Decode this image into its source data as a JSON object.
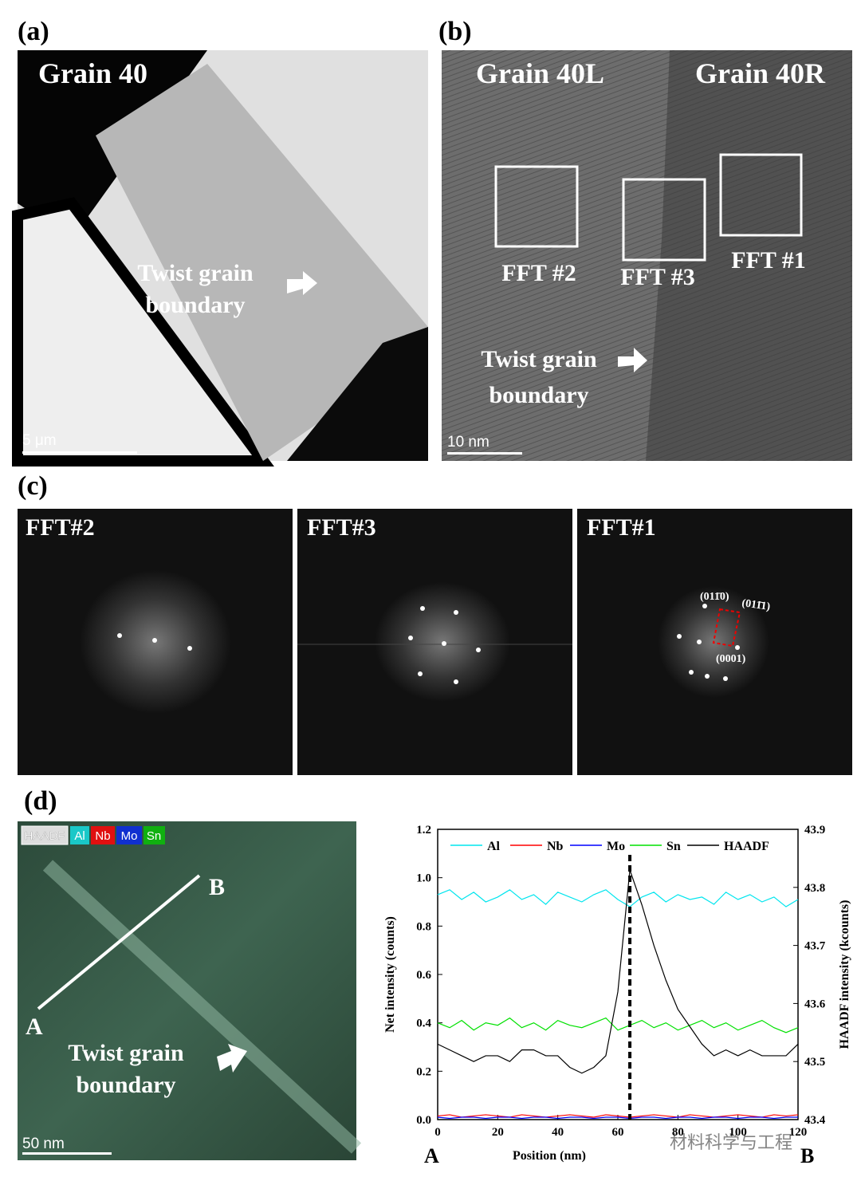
{
  "panels": {
    "a": {
      "label": "(a)",
      "title": "Grain 40",
      "note": [
        "Twist grain",
        "boundary"
      ],
      "scale": "5 μm"
    },
    "b": {
      "label": "(b)",
      "left": "Grain 40L",
      "right": "Grain 40R",
      "boxes": [
        "FFT #2",
        "FFT #3",
        "FFT #1"
      ],
      "note": [
        "Twist grain",
        "boundary"
      ],
      "scale": "10 nm"
    },
    "c": {
      "label": "(c)",
      "titles": [
        "FFT#2",
        "FFT#3",
        "FFT#1"
      ],
      "indices": [
        "(011̄0)",
        "(011̄1)",
        "(0001)"
      ]
    },
    "d": {
      "label": "(d)",
      "tags": [
        "HAADF",
        "Al",
        "Nb",
        "Mo",
        "Sn"
      ],
      "ends": [
        "B",
        "A"
      ],
      "note": [
        "Twist grain",
        "boundary"
      ],
      "scale": "50 nm",
      "axis_ends": [
        "A",
        "B"
      ],
      "watermark": "材料科学与工程"
    }
  },
  "chart_data": {
    "type": "line",
    "xlabel": "Position (nm)",
    "ylabel": "Net intensity (counts)",
    "y2label": "HAADF intensity (kcounts)",
    "x": [
      0,
      4,
      8,
      12,
      16,
      20,
      24,
      28,
      32,
      36,
      40,
      44,
      48,
      52,
      56,
      60,
      64,
      68,
      72,
      76,
      80,
      84,
      88,
      92,
      96,
      100,
      104,
      108,
      112,
      116,
      120
    ],
    "xlim": [
      0,
      120
    ],
    "xticks": [
      0,
      20,
      40,
      60,
      80,
      100,
      120
    ],
    "ylim": [
      0,
      1.2
    ],
    "yticks": [
      {
        "value": 0,
        "label": "0.0"
      },
      0.2,
      0.4,
      0.6,
      0.8,
      {
        "value": 1,
        "label": "1.0"
      },
      1.2
    ],
    "y2lim": [
      43.4,
      43.9
    ],
    "y2ticks": [
      43.4,
      43.5,
      43.6,
      43.7,
      43.8,
      43.9
    ],
    "marker_x": 64,
    "series": [
      {
        "name": "Al",
        "color": "#00e5ee",
        "values": [
          0.93,
          0.95,
          0.91,
          0.94,
          0.9,
          0.92,
          0.95,
          0.91,
          0.93,
          0.89,
          0.94,
          0.92,
          0.9,
          0.93,
          0.95,
          0.91,
          0.88,
          0.92,
          0.94,
          0.9,
          0.93,
          0.91,
          0.92,
          0.89,
          0.94,
          0.91,
          0.93,
          0.9,
          0.92,
          0.88,
          0.91
        ]
      },
      {
        "name": "Nb",
        "color": "#ff0000",
        "values": [
          0.015,
          0.02,
          0.01,
          0.015,
          0.02,
          0.015,
          0.01,
          0.02,
          0.015,
          0.01,
          0.015,
          0.02,
          0.015,
          0.01,
          0.02,
          0.015,
          0.01,
          0.015,
          0.02,
          0.015,
          0.01,
          0.02,
          0.015,
          0.01,
          0.015,
          0.02,
          0.015,
          0.01,
          0.02,
          0.015,
          0.02
        ]
      },
      {
        "name": "Mo",
        "color": "#0000ff",
        "values": [
          0.01,
          0.005,
          0.01,
          0.01,
          0.005,
          0.01,
          0.01,
          0.005,
          0.01,
          0.01,
          0.005,
          0.01,
          0.01,
          0.005,
          0.01,
          0.01,
          0.005,
          0.01,
          0.01,
          0.005,
          0.01,
          0.01,
          0.005,
          0.01,
          0.01,
          0.005,
          0.01,
          0.01,
          0.005,
          0.01,
          0.01
        ]
      },
      {
        "name": "Sn",
        "color": "#00e000",
        "values": [
          0.4,
          0.38,
          0.41,
          0.37,
          0.4,
          0.39,
          0.42,
          0.38,
          0.4,
          0.37,
          0.41,
          0.39,
          0.38,
          0.4,
          0.42,
          0.37,
          0.39,
          0.41,
          0.38,
          0.4,
          0.37,
          0.39,
          0.41,
          0.38,
          0.4,
          0.37,
          0.39,
          0.41,
          0.38,
          0.36,
          0.38
        ]
      },
      {
        "name": "HAADF",
        "color": "#000000",
        "axis": "y2",
        "values": [
          43.53,
          43.52,
          43.51,
          43.5,
          43.51,
          43.51,
          43.5,
          43.52,
          43.52,
          43.51,
          43.51,
          43.49,
          43.48,
          43.49,
          43.51,
          43.62,
          43.83,
          43.77,
          43.7,
          43.64,
          43.59,
          43.56,
          43.53,
          43.51,
          43.52,
          43.51,
          43.52,
          43.51,
          43.51,
          43.51,
          43.53
        ]
      }
    ]
  }
}
